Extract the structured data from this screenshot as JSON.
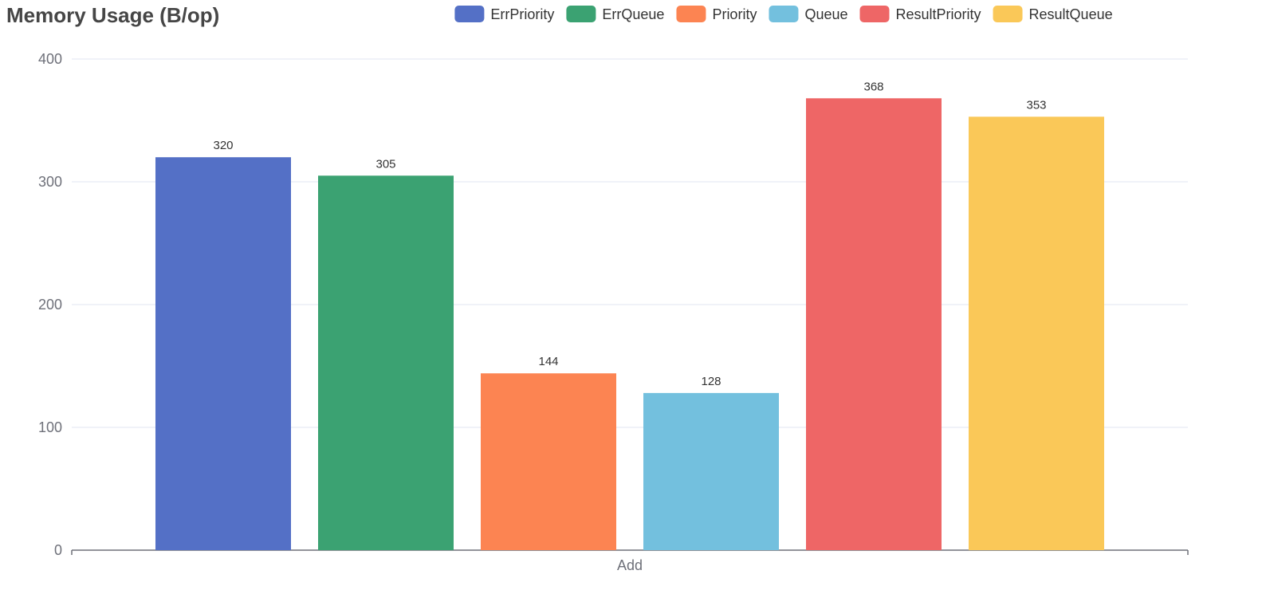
{
  "chart_data": {
    "type": "bar",
    "title": "Memory Usage (B/op)",
    "categories": [
      "Add"
    ],
    "series": [
      {
        "name": "ErrPriority",
        "values": [
          320
        ],
        "color": "#5470c6"
      },
      {
        "name": "ErrQueue",
        "values": [
          305
        ],
        "color": "#3ba272"
      },
      {
        "name": "Priority",
        "values": [
          144
        ],
        "color": "#fc8452"
      },
      {
        "name": "Queue",
        "values": [
          128
        ],
        "color": "#73c0de"
      },
      {
        "name": "ResultPriority",
        "values": [
          368
        ],
        "color": "#ee6666"
      },
      {
        "name": "ResultQueue",
        "values": [
          353
        ],
        "color": "#fac858"
      }
    ],
    "xlabel": "",
    "ylabel": "",
    "ylim": [
      0,
      400
    ],
    "yticks": [
      0,
      100,
      200,
      300,
      400
    ],
    "grid": true,
    "legend_position": "top-right"
  }
}
